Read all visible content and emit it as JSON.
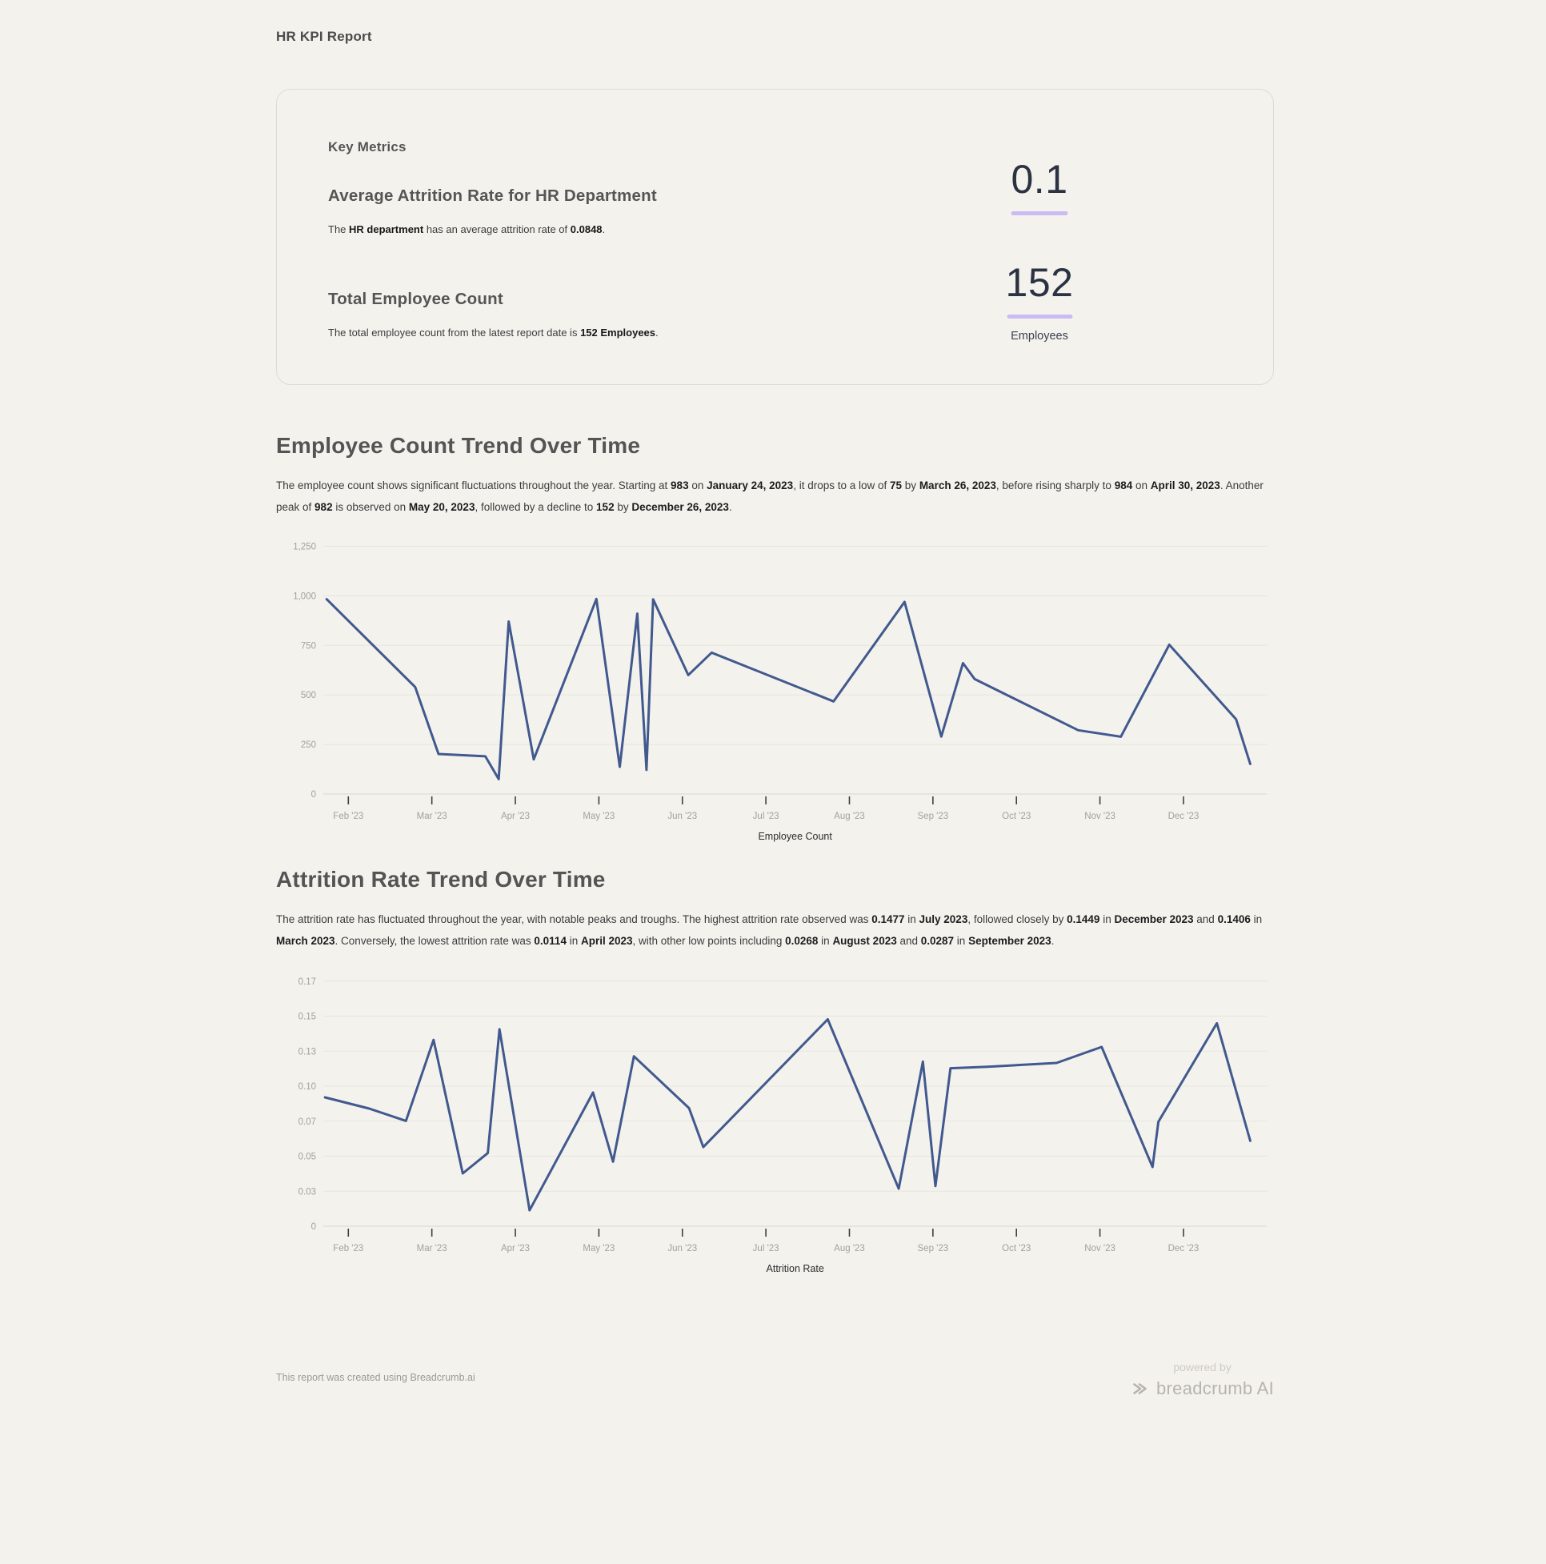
{
  "page": {
    "title": "HR KPI Report",
    "background": "#f4f2ed",
    "accent_underline": "#c9bcf4",
    "line_color": "#41598e"
  },
  "key_metrics": {
    "heading": "Key Metrics",
    "metrics": [
      {
        "title": "Average Attrition Rate for HR Department",
        "description": [
          {
            "t": "The "
          },
          {
            "t": "HR department",
            "b": 1
          },
          {
            "t": " has an average attrition rate of "
          },
          {
            "t": "0.0848",
            "b": 1
          },
          {
            "t": "."
          }
        ],
        "value": "0.1",
        "caption": ""
      },
      {
        "title": "Total Employee Count",
        "description": [
          {
            "t": "The total employee count from the latest report date is "
          },
          {
            "t": "152 Employees",
            "b": 1
          },
          {
            "t": "."
          }
        ],
        "value": "152",
        "caption": "Employees"
      }
    ]
  },
  "sections": [
    {
      "heading": "Employee Count Trend Over Time",
      "paragraph": [
        {
          "t": "The employee count shows significant fluctuations throughout the year. Starting at "
        },
        {
          "t": "983",
          "b": 1
        },
        {
          "t": " on "
        },
        {
          "t": "January 24, 2023",
          "b": 1
        },
        {
          "t": ", it drops to a low of "
        },
        {
          "t": "75",
          "b": 1
        },
        {
          "t": " by "
        },
        {
          "t": "March 26, 2023",
          "b": 1
        },
        {
          "t": ", before rising sharply to "
        },
        {
          "t": "984",
          "b": 1
        },
        {
          "t": " on "
        },
        {
          "t": "April 30, 2023",
          "b": 1
        },
        {
          "t": ". Another peak of "
        },
        {
          "t": "982",
          "b": 1
        },
        {
          "t": " is observed on "
        },
        {
          "t": "May 20, 2023",
          "b": 1
        },
        {
          "t": ", followed by a decline to "
        },
        {
          "t": "152",
          "b": 1
        },
        {
          "t": " by "
        },
        {
          "t": "December 26, 2023",
          "b": 1
        },
        {
          "t": "."
        }
      ]
    },
    {
      "heading": "Attrition Rate Trend Over Time",
      "paragraph": [
        {
          "t": "The attrition rate has fluctuated throughout the year, with notable peaks and troughs. The highest attrition rate observed was "
        },
        {
          "t": "0.1477",
          "b": 1
        },
        {
          "t": " in "
        },
        {
          "t": "July 2023",
          "b": 1
        },
        {
          "t": ", followed closely by "
        },
        {
          "t": "0.1449",
          "b": 1
        },
        {
          "t": " in "
        },
        {
          "t": "December 2023",
          "b": 1
        },
        {
          "t": " and "
        },
        {
          "t": "0.1406",
          "b": 1
        },
        {
          "t": " in "
        },
        {
          "t": "March 2023",
          "b": 1
        },
        {
          "t": ". Conversely, the lowest attrition rate was "
        },
        {
          "t": "0.0114",
          "b": 1
        },
        {
          "t": " in "
        },
        {
          "t": "April 2023",
          "b": 1
        },
        {
          "t": ", with other low points including "
        },
        {
          "t": "0.0268",
          "b": 1
        },
        {
          "t": " in "
        },
        {
          "t": "August 2023",
          "b": 1
        },
        {
          "t": " and "
        },
        {
          "t": "0.0287",
          "b": 1
        },
        {
          "t": " in "
        },
        {
          "t": "September 2023",
          "b": 1
        },
        {
          "t": "."
        }
      ]
    }
  ],
  "footer": {
    "left": "This report was created using Breadcrumb.ai",
    "powered_by": "powered by",
    "brand": "breadcrumb AI"
  },
  "chart_data": [
    {
      "type": "line",
      "title": "Employee Count Trend Over Time",
      "xlabel": "Employee Count",
      "ylabel": "",
      "x_unit": "month index (1 = Feb 1 2023, fractional = day within month)",
      "xlim": [
        0.7,
        12.0
      ],
      "ylim": [
        0,
        1280
      ],
      "grid": true,
      "legend_position": "bottom",
      "x_ticks": [
        {
          "m": 1,
          "label": "Feb '23"
        },
        {
          "m": 2,
          "label": "Mar '23"
        },
        {
          "m": 3,
          "label": "Apr '23"
        },
        {
          "m": 4,
          "label": "May '23"
        },
        {
          "m": 5,
          "label": "Jun '23"
        },
        {
          "m": 6,
          "label": "Jul '23"
        },
        {
          "m": 7,
          "label": "Aug '23"
        },
        {
          "m": 8,
          "label": "Sep '23"
        },
        {
          "m": 9,
          "label": "Oct '23"
        },
        {
          "m": 10,
          "label": "Nov '23"
        },
        {
          "m": 11,
          "label": "Dec '23"
        }
      ],
      "y_ticks": [
        {
          "v": 0,
          "label": "0"
        },
        {
          "v": 250,
          "label": "250"
        },
        {
          "v": 500,
          "label": "500"
        },
        {
          "v": 750,
          "label": "750"
        },
        {
          "v": 1000,
          "label": "1,000"
        },
        {
          "v": 1250,
          "label": "1,250"
        }
      ],
      "series": [
        {
          "name": "Employee Count",
          "points": [
            [
              0.74,
              983
            ],
            [
              1.8,
              540
            ],
            [
              2.08,
              202
            ],
            [
              2.64,
              190
            ],
            [
              2.8,
              75
            ],
            [
              2.92,
              870
            ],
            [
              3.22,
              175
            ],
            [
              3.97,
              984
            ],
            [
              4.25,
              137
            ],
            [
              4.46,
              910
            ],
            [
              4.57,
              122
            ],
            [
              4.65,
              982
            ],
            [
              5.07,
              600
            ],
            [
              5.35,
              713
            ],
            [
              6.81,
              467
            ],
            [
              7.66,
              969
            ],
            [
              8.1,
              290
            ],
            [
              8.36,
              660
            ],
            [
              8.5,
              580
            ],
            [
              9.74,
              322
            ],
            [
              10.25,
              289
            ],
            [
              10.83,
              753
            ],
            [
              11.63,
              377
            ],
            [
              11.8,
              152
            ]
          ]
        }
      ]
    },
    {
      "type": "line",
      "title": "Attrition Rate Trend Over Time",
      "xlabel": "Attrition Rate",
      "ylabel": "",
      "x_unit": "month index (1 = Feb 1 2023, fractional = day within month)",
      "xlim": [
        0.7,
        12.0
      ],
      "ylim": [
        0,
        0.18
      ],
      "grid": true,
      "legend_position": "bottom",
      "x_ticks": [
        {
          "m": 1,
          "label": "Feb '23"
        },
        {
          "m": 2,
          "label": "Mar '23"
        },
        {
          "m": 3,
          "label": "Apr '23"
        },
        {
          "m": 4,
          "label": "May '23"
        },
        {
          "m": 5,
          "label": "Jun '23"
        },
        {
          "m": 6,
          "label": "Jul '23"
        },
        {
          "m": 7,
          "label": "Aug '23"
        },
        {
          "m": 8,
          "label": "Sep '23"
        },
        {
          "m": 9,
          "label": "Oct '23"
        },
        {
          "m": 10,
          "label": "Nov '23"
        },
        {
          "m": 11,
          "label": "Dec '23"
        }
      ],
      "y_ticks": [
        {
          "v": 0,
          "label": "0"
        },
        {
          "v": 0.025,
          "label": "0.03"
        },
        {
          "v": 0.05,
          "label": "0.05"
        },
        {
          "v": 0.075,
          "label": "0.07"
        },
        {
          "v": 0.1,
          "label": "0.10"
        },
        {
          "v": 0.125,
          "label": "0.13"
        },
        {
          "v": 0.15,
          "label": "0.15"
        },
        {
          "v": 0.175,
          "label": "0.17"
        }
      ],
      "series": [
        {
          "name": "Attrition Rate",
          "points": [
            [
              0.72,
              0.092
            ],
            [
              1.25,
              0.084
            ],
            [
              1.69,
              0.0752
            ],
            [
              2.02,
              0.133
            ],
            [
              2.37,
              0.0377
            ],
            [
              2.67,
              0.0522
            ],
            [
              2.81,
              0.1406
            ],
            [
              3.17,
              0.0114
            ],
            [
              3.93,
              0.0954
            ],
            [
              4.17,
              0.0461
            ],
            [
              4.42,
              0.1213
            ],
            [
              5.08,
              0.0843
            ],
            [
              5.25,
              0.0565
            ],
            [
              6.74,
              0.1477
            ],
            [
              7.59,
              0.0268
            ],
            [
              7.88,
              0.1175
            ],
            [
              8.03,
              0.0287
            ],
            [
              8.21,
              0.1128
            ],
            [
              8.66,
              0.1139
            ],
            [
              9.48,
              0.1166
            ],
            [
              10.02,
              0.128
            ],
            [
              10.63,
              0.0423
            ],
            [
              10.7,
              0.0746
            ],
            [
              11.4,
              0.1449
            ],
            [
              11.8,
              0.061
            ]
          ]
        }
      ]
    }
  ]
}
